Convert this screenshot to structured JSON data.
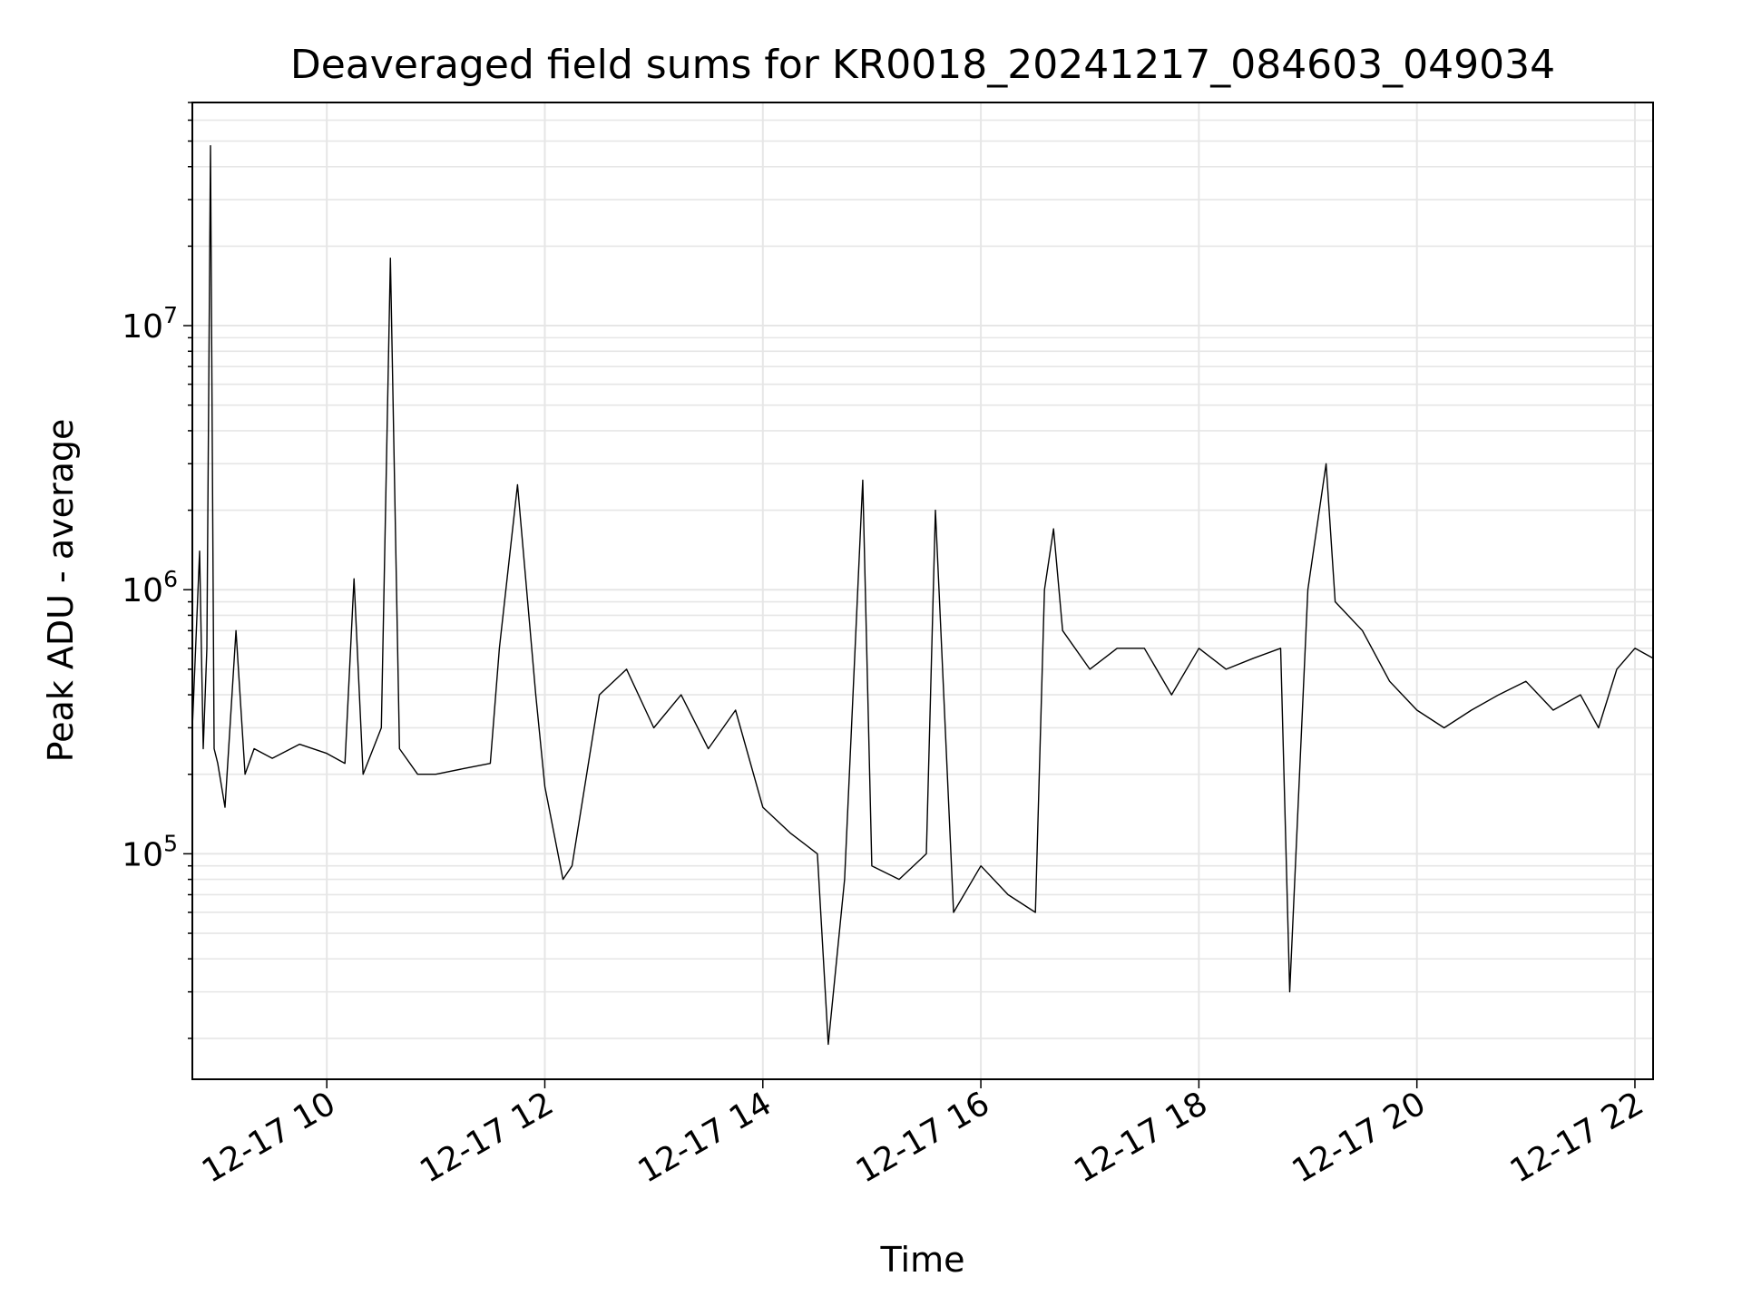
{
  "chart_data": {
    "type": "line",
    "title": "Deaveraged field sums for KR0018_20241217_084603_049034",
    "xlabel": "Time",
    "ylabel": "Peak ADU - average",
    "y_scale": "log",
    "ylim": [
      14000,
      70000000
    ],
    "xlim": [
      "2024-12-17 08:46",
      "2024-12-17 22:10"
    ],
    "grid": true,
    "line_color": "#000000",
    "x_ticks": [
      {
        "t": "2024-12-17 10:00",
        "label": "12-17 10"
      },
      {
        "t": "2024-12-17 12:00",
        "label": "12-17 12"
      },
      {
        "t": "2024-12-17 14:00",
        "label": "12-17 14"
      },
      {
        "t": "2024-12-17 16:00",
        "label": "12-17 16"
      },
      {
        "t": "2024-12-17 18:00",
        "label": "12-17 18"
      },
      {
        "t": "2024-12-17 20:00",
        "label": "12-17 20"
      },
      {
        "t": "2024-12-17 22:00",
        "label": "12-17 22"
      }
    ],
    "y_ticks": [
      {
        "value": 100000,
        "base": "10",
        "exp": "5"
      },
      {
        "value": 1000000,
        "base": "10",
        "exp": "6"
      },
      {
        "value": 10000000,
        "base": "10",
        "exp": "7"
      }
    ],
    "series": [
      {
        "x": [
          "2024-12-17 08:46",
          "2024-12-17 08:50",
          "2024-12-17 08:52",
          "2024-12-17 08:54",
          "2024-12-17 08:56",
          "2024-12-17 08:58",
          "2024-12-17 09:00",
          "2024-12-17 09:04",
          "2024-12-17 09:10",
          "2024-12-17 09:15",
          "2024-12-17 09:20",
          "2024-12-17 09:30",
          "2024-12-17 09:45",
          "2024-12-17 10:00",
          "2024-12-17 10:10",
          "2024-12-17 10:15",
          "2024-12-17 10:20",
          "2024-12-17 10:30",
          "2024-12-17 10:35",
          "2024-12-17 10:40",
          "2024-12-17 10:50",
          "2024-12-17 11:00",
          "2024-12-17 11:15",
          "2024-12-17 11:30",
          "2024-12-17 11:35",
          "2024-12-17 11:45",
          "2024-12-17 11:55",
          "2024-12-17 12:00",
          "2024-12-17 12:10",
          "2024-12-17 12:15",
          "2024-12-17 12:30",
          "2024-12-17 12:45",
          "2024-12-17 13:00",
          "2024-12-17 13:15",
          "2024-12-17 13:30",
          "2024-12-17 13:45",
          "2024-12-17 14:00",
          "2024-12-17 14:15",
          "2024-12-17 14:30",
          "2024-12-17 14:36",
          "2024-12-17 14:45",
          "2024-12-17 14:55",
          "2024-12-17 15:00",
          "2024-12-17 15:15",
          "2024-12-17 15:30",
          "2024-12-17 15:35",
          "2024-12-17 15:45",
          "2024-12-17 16:00",
          "2024-12-17 16:15",
          "2024-12-17 16:30",
          "2024-12-17 16:35",
          "2024-12-17 16:40",
          "2024-12-17 16:45",
          "2024-12-17 17:00",
          "2024-12-17 17:15",
          "2024-12-17 17:30",
          "2024-12-17 17:45",
          "2024-12-17 18:00",
          "2024-12-17 18:15",
          "2024-12-17 18:30",
          "2024-12-17 18:45",
          "2024-12-17 18:50",
          "2024-12-17 19:00",
          "2024-12-17 19:10",
          "2024-12-17 19:15",
          "2024-12-17 19:30",
          "2024-12-17 19:45",
          "2024-12-17 20:00",
          "2024-12-17 20:15",
          "2024-12-17 20:30",
          "2024-12-17 20:45",
          "2024-12-17 21:00",
          "2024-12-17 21:15",
          "2024-12-17 21:30",
          "2024-12-17 21:40",
          "2024-12-17 21:50",
          "2024-12-17 22:00",
          "2024-12-17 22:10"
        ],
        "y": [
          300000,
          1400000,
          250000,
          600000,
          48000000,
          250000,
          220000,
          150000,
          700000,
          200000,
          250000,
          230000,
          260000,
          240000,
          220000,
          1100000,
          200000,
          300000,
          18000000,
          250000,
          200000,
          200000,
          210000,
          220000,
          600000,
          2500000,
          400000,
          180000,
          80000,
          90000,
          400000,
          500000,
          300000,
          400000,
          250000,
          350000,
          150000,
          120000,
          100000,
          19000,
          80000,
          2600000,
          90000,
          80000,
          100000,
          2000000,
          60000,
          90000,
          70000,
          60000,
          1000000,
          1700000,
          700000,
          500000,
          600000,
          600000,
          400000,
          600000,
          500000,
          550000,
          600000,
          30000,
          1000000,
          3000000,
          900000,
          700000,
          450000,
          350000,
          300000,
          350000,
          400000,
          450000,
          350000,
          400000,
          300000,
          500000,
          600000,
          550000
        ]
      }
    ]
  }
}
